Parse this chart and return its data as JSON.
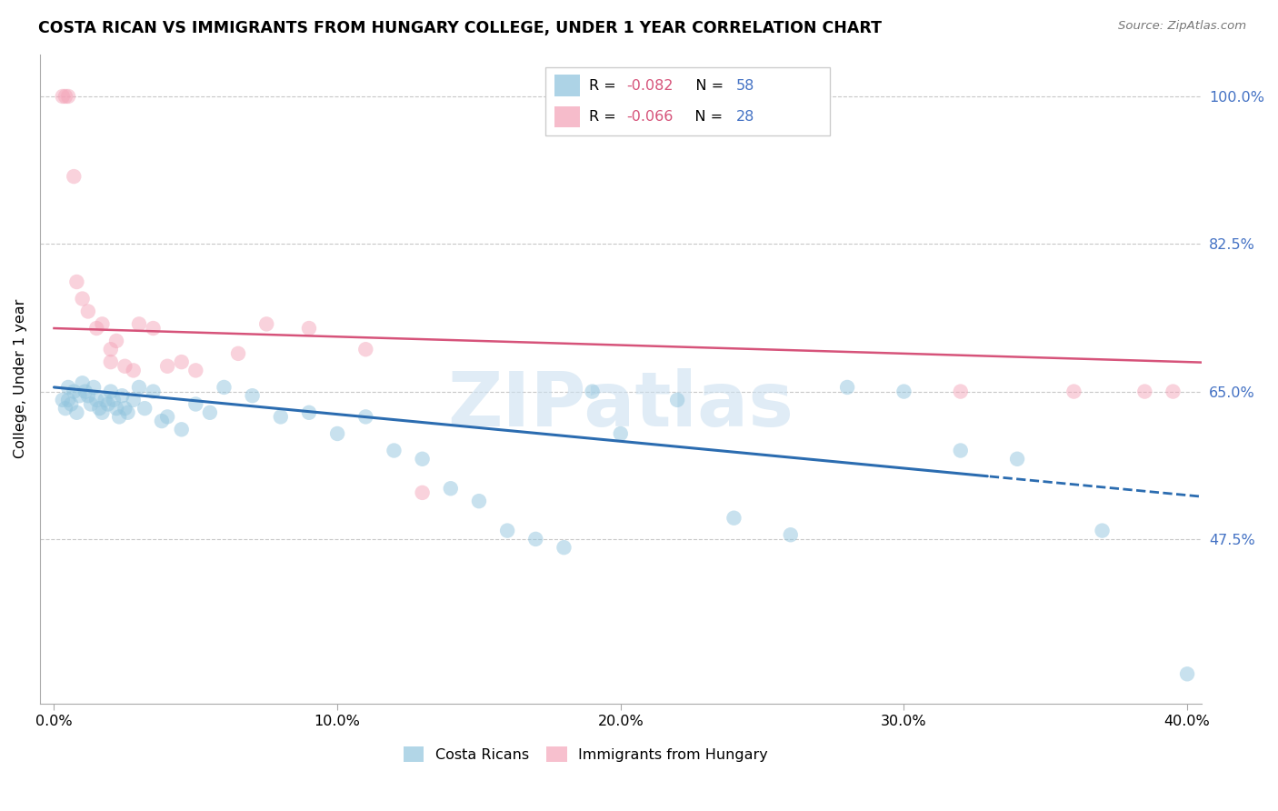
{
  "title": "COSTA RICAN VS IMMIGRANTS FROM HUNGARY COLLEGE, UNDER 1 YEAR CORRELATION CHART",
  "source": "Source: ZipAtlas.com",
  "ylabel": "College, Under 1 year",
  "xmin": 0.0,
  "xmax": 40.0,
  "ymin": 28.0,
  "ymax": 105.0,
  "blue_color": "#92c5de",
  "pink_color": "#f4a6ba",
  "blue_line_color": "#2b6cb0",
  "pink_line_color": "#d6537a",
  "right_tick_color": "#4472c4",
  "r1_val": "-0.082",
  "n1_val": "58",
  "r2_val": "-0.066",
  "n2_val": "28",
  "watermark": "ZIPatlas",
  "ytick_vals": [
    47.5,
    65.0,
    82.5,
    100.0
  ],
  "xtick_vals": [
    0.0,
    10.0,
    20.0,
    30.0,
    40.0
  ],
  "blue_x": [
    0.3,
    0.4,
    0.5,
    0.5,
    0.6,
    0.7,
    0.8,
    0.9,
    1.0,
    1.1,
    1.2,
    1.3,
    1.4,
    1.5,
    1.6,
    1.7,
    1.8,
    1.9,
    2.0,
    2.1,
    2.2,
    2.3,
    2.4,
    2.5,
    2.6,
    2.8,
    3.0,
    3.2,
    3.5,
    3.8,
    4.0,
    4.5,
    5.0,
    5.5,
    6.0,
    7.0,
    8.0,
    9.0,
    10.0,
    11.0,
    12.0,
    13.0,
    14.0,
    15.0,
    16.0,
    17.0,
    18.0,
    19.0,
    20.0,
    22.0,
    24.0,
    26.0,
    28.0,
    30.0,
    32.0,
    34.0,
    37.0,
    40.0
  ],
  "blue_y": [
    64.0,
    63.0,
    65.5,
    64.0,
    63.5,
    65.0,
    62.5,
    64.5,
    66.0,
    65.0,
    64.5,
    63.5,
    65.5,
    64.0,
    63.0,
    62.5,
    64.0,
    63.5,
    65.0,
    64.0,
    63.0,
    62.0,
    64.5,
    63.0,
    62.5,
    64.0,
    65.5,
    63.0,
    65.0,
    61.5,
    62.0,
    60.5,
    63.5,
    62.5,
    65.5,
    64.5,
    62.0,
    62.5,
    60.0,
    62.0,
    58.0,
    57.0,
    53.5,
    52.0,
    48.5,
    47.5,
    46.5,
    65.0,
    60.0,
    64.0,
    50.0,
    48.0,
    65.5,
    65.0,
    58.0,
    57.0,
    48.5,
    31.5
  ],
  "pink_x": [
    0.3,
    0.4,
    0.5,
    0.7,
    0.8,
    1.0,
    1.2,
    1.5,
    1.7,
    2.0,
    2.0,
    2.2,
    2.5,
    2.8,
    3.0,
    3.5,
    4.0,
    4.5,
    5.0,
    6.5,
    7.5,
    9.0,
    11.0,
    13.0,
    32.0,
    36.0,
    38.5,
    39.5
  ],
  "pink_y": [
    100.0,
    100.0,
    100.0,
    90.5,
    78.0,
    76.0,
    74.5,
    72.5,
    73.0,
    70.0,
    68.5,
    71.0,
    68.0,
    67.5,
    73.0,
    72.5,
    68.0,
    68.5,
    67.5,
    69.5,
    73.0,
    72.5,
    70.0,
    53.0,
    65.0,
    65.0,
    65.0,
    65.0
  ],
  "blue_trendline_intercept": 65.5,
  "blue_trendline_slope": -0.32,
  "pink_trendline_intercept": 72.5,
  "pink_trendline_slope": -0.1,
  "blue_solid_cutoff": 33.0
}
